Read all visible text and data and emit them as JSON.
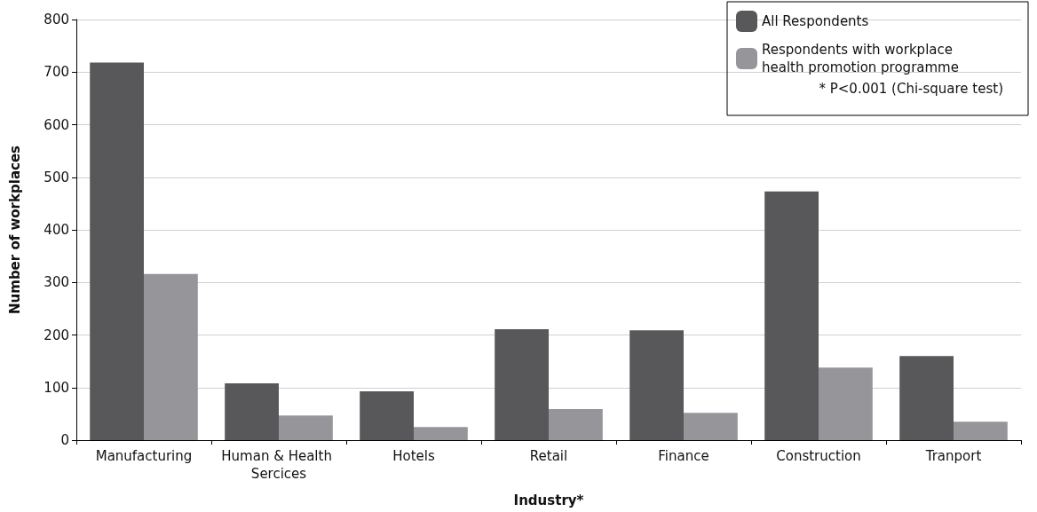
{
  "chart_data": {
    "type": "bar",
    "xlabel": "Industry*",
    "ylabel": "Number of workplaces",
    "categories": [
      "Manufacturing",
      "Human & Health Sercices",
      "Hotels",
      "Retail",
      "Finance",
      "Construction",
      "Tranport"
    ],
    "series": [
      {
        "name": "All Respondents",
        "color": "#58585a",
        "values": [
          718,
          108,
          93,
          211,
          209,
          473,
          160
        ]
      },
      {
        "name": "Respondents with workplace health promotion programme",
        "color": "#96969a",
        "values": [
          316,
          47,
          25,
          59,
          52,
          138,
          35
        ]
      }
    ],
    "ylim": [
      0,
      800
    ],
    "yticks": [
      0,
      100,
      200,
      300,
      400,
      500,
      600,
      700,
      800
    ],
    "grid": "y",
    "legend": "top right",
    "annotations": [
      "* P<0.001 (Chi-square test)"
    ]
  }
}
